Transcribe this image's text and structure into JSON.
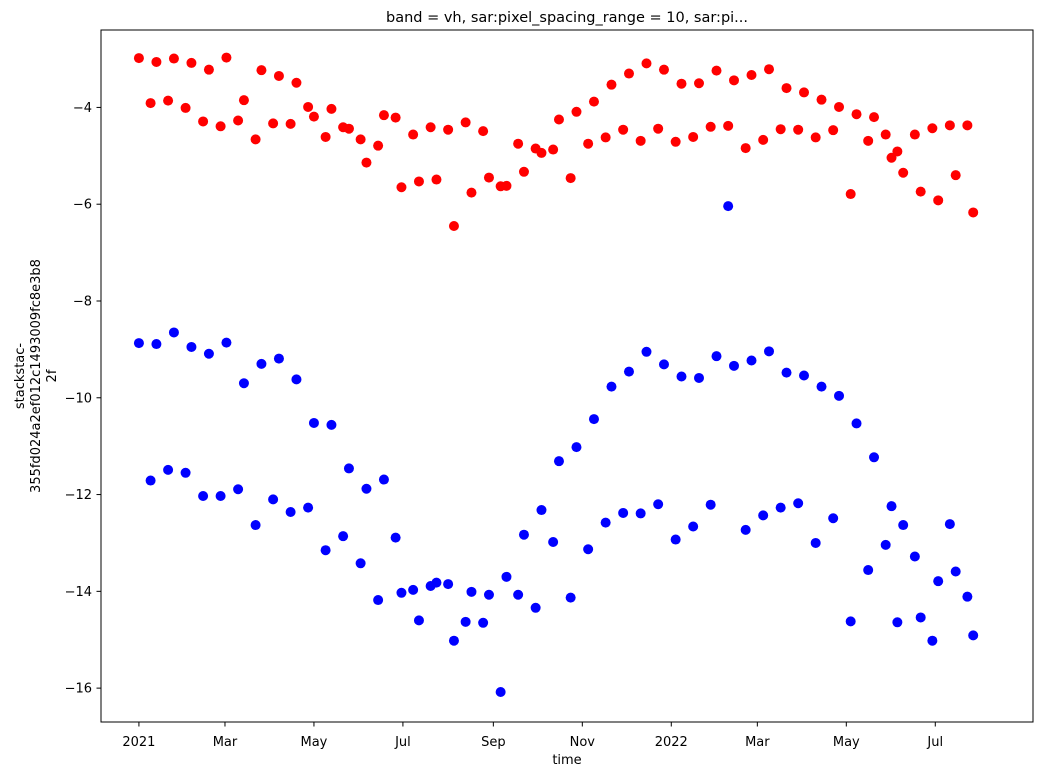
{
  "chart_data": {
    "type": "scatter",
    "title": "band = vh, sar:pixel_spacing_range = 10, sar:pi...",
    "xlabel": "time",
    "ylabel_lines": [
      "stackstac-",
      "355fd024a2ef012c1493009fc8e3b8",
      "2f"
    ],
    "xlim": [
      "2020-12-06",
      "2022-09-06"
    ],
    "ylim": [
      -16.7,
      -2.4
    ],
    "x_ticks": [
      {
        "date": "2021-01-01",
        "label": "2021"
      },
      {
        "date": "2021-03-01",
        "label": "Mar"
      },
      {
        "date": "2021-05-01",
        "label": "May"
      },
      {
        "date": "2021-07-01",
        "label": "Jul"
      },
      {
        "date": "2021-09-01",
        "label": "Sep"
      },
      {
        "date": "2021-11-01",
        "label": "Nov"
      },
      {
        "date": "2022-01-01",
        "label": "2022"
      },
      {
        "date": "2022-03-01",
        "label": "Mar"
      },
      {
        "date": "2022-05-01",
        "label": "May"
      },
      {
        "date": "2022-07-01",
        "label": "Jul"
      }
    ],
    "y_ticks": [
      {
        "value": -16,
        "label": "−16"
      },
      {
        "value": -14,
        "label": "−14"
      },
      {
        "value": -12,
        "label": "−12"
      },
      {
        "value": -10,
        "label": "−10"
      },
      {
        "value": -8,
        "label": "−8"
      },
      {
        "value": -6,
        "label": "−6"
      },
      {
        "value": -4,
        "label": "−4"
      }
    ],
    "grid": false,
    "series": [
      {
        "color": "#ff0000",
        "points": [
          [
            "2021-01-01",
            -2.98
          ],
          [
            "2021-01-09",
            -3.91
          ],
          [
            "2021-01-13",
            -3.06
          ],
          [
            "2021-01-21",
            -3.86
          ],
          [
            "2021-01-25",
            -2.99
          ],
          [
            "2021-02-02",
            -4.01
          ],
          [
            "2021-02-06",
            -3.08
          ],
          [
            "2021-02-14",
            -4.29
          ],
          [
            "2021-02-18",
            -3.22
          ],
          [
            "2021-02-26",
            -4.39
          ],
          [
            "2021-03-02",
            -2.97
          ],
          [
            "2021-03-10",
            -4.27
          ],
          [
            "2021-03-14",
            -3.85
          ],
          [
            "2021-03-22",
            -4.66
          ],
          [
            "2021-03-26",
            -3.23
          ],
          [
            "2021-04-03",
            -4.33
          ],
          [
            "2021-04-07",
            -3.35
          ],
          [
            "2021-04-15",
            -4.34
          ],
          [
            "2021-04-19",
            -3.49
          ],
          [
            "2021-04-27",
            -3.99
          ],
          [
            "2021-05-01",
            -4.19
          ],
          [
            "2021-05-09",
            -4.61
          ],
          [
            "2021-05-13",
            -4.03
          ],
          [
            "2021-05-21",
            -4.41
          ],
          [
            "2021-05-25",
            -4.44
          ],
          [
            "2021-06-02",
            -4.66
          ],
          [
            "2021-06-06",
            -5.14
          ],
          [
            "2021-06-14",
            -4.79
          ],
          [
            "2021-06-18",
            -4.16
          ],
          [
            "2021-06-26",
            -4.21
          ],
          [
            "2021-06-30",
            -5.65
          ],
          [
            "2021-07-08",
            -4.56
          ],
          [
            "2021-07-12",
            -5.53
          ],
          [
            "2021-07-20",
            -4.41
          ],
          [
            "2021-07-24",
            -5.49
          ],
          [
            "2021-08-01",
            -4.46
          ],
          [
            "2021-08-05",
            -6.45
          ],
          [
            "2021-08-13",
            -4.31
          ],
          [
            "2021-08-17",
            -5.76
          ],
          [
            "2021-08-25",
            -4.49
          ],
          [
            "2021-08-29",
            -5.45
          ],
          [
            "2021-09-06",
            -5.63
          ],
          [
            "2021-09-10",
            -5.62
          ],
          [
            "2021-09-18",
            -4.75
          ],
          [
            "2021-09-22",
            -5.33
          ],
          [
            "2021-09-30",
            -4.85
          ],
          [
            "2021-10-04",
            -4.94
          ],
          [
            "2021-10-12",
            -4.87
          ],
          [
            "2021-10-16",
            -4.25
          ],
          [
            "2021-10-24",
            -5.46
          ],
          [
            "2021-10-28",
            -4.09
          ],
          [
            "2021-11-05",
            -4.75
          ],
          [
            "2021-11-09",
            -3.88
          ],
          [
            "2021-11-17",
            -4.62
          ],
          [
            "2021-11-21",
            -3.53
          ],
          [
            "2021-11-29",
            -4.46
          ],
          [
            "2021-12-03",
            -3.3
          ],
          [
            "2021-12-11",
            -4.69
          ],
          [
            "2021-12-15",
            -3.09
          ],
          [
            "2021-12-23",
            -4.44
          ],
          [
            "2021-12-27",
            -3.22
          ],
          [
            "2022-01-04",
            -4.71
          ],
          [
            "2022-01-08",
            -3.51
          ],
          [
            "2022-01-16",
            -4.61
          ],
          [
            "2022-01-20",
            -3.5
          ],
          [
            "2022-01-28",
            -4.4
          ],
          [
            "2022-02-01",
            -3.24
          ],
          [
            "2022-02-09",
            -4.38
          ],
          [
            "2022-02-13",
            -3.44
          ],
          [
            "2022-02-21",
            -4.84
          ],
          [
            "2022-02-25",
            -3.33
          ],
          [
            "2022-03-05",
            -4.67
          ],
          [
            "2022-03-09",
            -3.21
          ],
          [
            "2022-03-17",
            -4.45
          ],
          [
            "2022-03-21",
            -3.6
          ],
          [
            "2022-03-29",
            -4.46
          ],
          [
            "2022-04-02",
            -3.69
          ],
          [
            "2022-04-10",
            -4.62
          ],
          [
            "2022-04-14",
            -3.84
          ],
          [
            "2022-04-22",
            -4.47
          ],
          [
            "2022-04-26",
            -3.99
          ],
          [
            "2022-05-04",
            -5.79
          ],
          [
            "2022-05-08",
            -4.14
          ],
          [
            "2022-05-16",
            -4.69
          ],
          [
            "2022-05-20",
            -4.2
          ],
          [
            "2022-05-28",
            -4.56
          ],
          [
            "2022-06-01",
            -5.04
          ],
          [
            "2022-06-05",
            -4.91
          ],
          [
            "2022-06-09",
            -5.35
          ],
          [
            "2022-06-17",
            -4.56
          ],
          [
            "2022-06-21",
            -5.74
          ],
          [
            "2022-06-29",
            -4.43
          ],
          [
            "2022-07-03",
            -5.92
          ],
          [
            "2022-07-11",
            -4.37
          ],
          [
            "2022-07-15",
            -5.4
          ],
          [
            "2022-07-23",
            -4.37
          ],
          [
            "2022-07-27",
            -6.17
          ]
        ]
      },
      {
        "color": "#0000ff",
        "points": [
          [
            "2021-01-01",
            -8.87
          ],
          [
            "2021-01-09",
            -11.71
          ],
          [
            "2021-01-13",
            -8.89
          ],
          [
            "2021-01-21",
            -11.49
          ],
          [
            "2021-01-25",
            -8.65
          ],
          [
            "2021-02-02",
            -11.55
          ],
          [
            "2021-02-06",
            -8.95
          ],
          [
            "2021-02-14",
            -12.03
          ],
          [
            "2021-02-18",
            -9.09
          ],
          [
            "2021-02-26",
            -12.03
          ],
          [
            "2021-03-02",
            -8.86
          ],
          [
            "2021-03-10",
            -11.89
          ],
          [
            "2021-03-14",
            -9.7
          ],
          [
            "2021-03-22",
            -12.63
          ],
          [
            "2021-03-26",
            -9.3
          ],
          [
            "2021-04-03",
            -12.1
          ],
          [
            "2021-04-07",
            -9.19
          ],
          [
            "2021-04-15",
            -12.36
          ],
          [
            "2021-04-19",
            -9.62
          ],
          [
            "2021-04-27",
            -12.27
          ],
          [
            "2021-05-01",
            -10.52
          ],
          [
            "2021-05-09",
            -13.15
          ],
          [
            "2021-05-13",
            -10.56
          ],
          [
            "2021-05-21",
            -12.86
          ],
          [
            "2021-05-25",
            -11.46
          ],
          [
            "2021-06-02",
            -13.42
          ],
          [
            "2021-06-06",
            -11.88
          ],
          [
            "2021-06-14",
            -14.18
          ],
          [
            "2021-06-18",
            -11.69
          ],
          [
            "2021-06-26",
            -12.89
          ],
          [
            "2021-06-30",
            -14.03
          ],
          [
            "2021-07-08",
            -13.97
          ],
          [
            "2021-07-12",
            -14.6
          ],
          [
            "2021-07-20",
            -13.89
          ],
          [
            "2021-07-24",
            -13.82
          ],
          [
            "2021-08-01",
            -13.85
          ],
          [
            "2021-08-05",
            -15.02
          ],
          [
            "2021-08-13",
            -14.63
          ],
          [
            "2021-08-17",
            -14.01
          ],
          [
            "2021-08-25",
            -14.65
          ],
          [
            "2021-08-29",
            -14.07
          ],
          [
            "2021-09-06",
            -16.08
          ],
          [
            "2021-09-10",
            -13.7
          ],
          [
            "2021-09-18",
            -14.07
          ],
          [
            "2021-09-22",
            -12.83
          ],
          [
            "2021-09-30",
            -14.34
          ],
          [
            "2021-10-04",
            -12.32
          ],
          [
            "2021-10-12",
            -12.98
          ],
          [
            "2021-10-16",
            -11.31
          ],
          [
            "2021-10-24",
            -14.13
          ],
          [
            "2021-10-28",
            -11.02
          ],
          [
            "2021-11-05",
            -13.13
          ],
          [
            "2021-11-09",
            -10.44
          ],
          [
            "2021-11-17",
            -12.58
          ],
          [
            "2021-11-21",
            -9.77
          ],
          [
            "2021-11-29",
            -12.38
          ],
          [
            "2021-12-03",
            -9.46
          ],
          [
            "2021-12-11",
            -12.39
          ],
          [
            "2021-12-15",
            -9.05
          ],
          [
            "2021-12-23",
            -12.2
          ],
          [
            "2021-12-27",
            -9.31
          ],
          [
            "2022-01-04",
            -12.93
          ],
          [
            "2022-01-08",
            -9.56
          ],
          [
            "2022-01-16",
            -12.66
          ],
          [
            "2022-01-20",
            -9.59
          ],
          [
            "2022-01-28",
            -12.21
          ],
          [
            "2022-02-01",
            -9.14
          ],
          [
            "2022-02-09",
            -6.04
          ],
          [
            "2022-02-13",
            -9.34
          ],
          [
            "2022-02-21",
            -12.73
          ],
          [
            "2022-02-25",
            -9.23
          ],
          [
            "2022-03-05",
            -12.43
          ],
          [
            "2022-03-09",
            -9.04
          ],
          [
            "2022-03-17",
            -12.27
          ],
          [
            "2022-03-21",
            -9.48
          ],
          [
            "2022-03-29",
            -12.18
          ],
          [
            "2022-04-02",
            -9.54
          ],
          [
            "2022-04-10",
            -13.0
          ],
          [
            "2022-04-14",
            -9.77
          ],
          [
            "2022-04-22",
            -12.49
          ],
          [
            "2022-04-26",
            -9.96
          ],
          [
            "2022-05-04",
            -14.62
          ],
          [
            "2022-05-08",
            -10.53
          ],
          [
            "2022-05-16",
            -13.56
          ],
          [
            "2022-05-20",
            -11.23
          ],
          [
            "2022-05-28",
            -13.04
          ],
          [
            "2022-06-01",
            -12.24
          ],
          [
            "2022-06-05",
            -14.64
          ],
          [
            "2022-06-09",
            -12.63
          ],
          [
            "2022-06-17",
            -13.28
          ],
          [
            "2022-06-21",
            -14.54
          ],
          [
            "2022-06-29",
            -15.02
          ],
          [
            "2022-07-03",
            -13.79
          ],
          [
            "2022-07-11",
            -12.61
          ],
          [
            "2022-07-15",
            -13.59
          ],
          [
            "2022-07-23",
            -14.11
          ],
          [
            "2022-07-27",
            -14.91
          ]
        ]
      }
    ]
  }
}
